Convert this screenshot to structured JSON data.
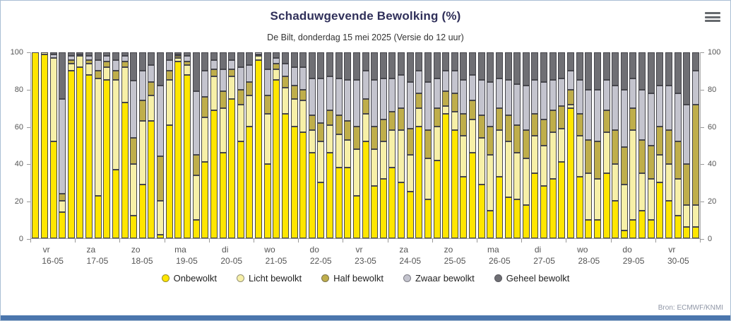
{
  "header": {
    "title": "Schaduwgevende Bewolking (%)",
    "subtitle": "De Bilt, donderdag 15 mei 2025 (Versie do 12 uur)"
  },
  "menu_icon": "hamburger-icon",
  "credits": "Bron: ECMWF/KNMI",
  "chart_data": {
    "type": "bar",
    "stacked": true,
    "title": "Schaduwgevende Bewolking (%)",
    "subtitle": "De Bilt, donderdag 15 mei 2025 (Versie do 12 uur)",
    "ylim": [
      0,
      100
    ],
    "yticks": [
      0,
      20,
      40,
      60,
      80,
      100
    ],
    "grid": false,
    "legend_position": "bottom",
    "series_names": [
      "Onbewolkt",
      "Licht bewolkt",
      "Half bewolkt",
      "Zwaar bewolkt",
      "Geheel bewolkt"
    ],
    "series_colors": [
      "#ffe600",
      "#f7f0a8",
      "#bfae4b",
      "#c4c4ce",
      "#6f6f74"
    ],
    "bars_per_day": 5,
    "days": [
      {
        "weekday": "vr",
        "date": "16-05",
        "bars": [
          [
            100,
            0,
            0,
            0,
            0
          ],
          [
            99,
            1,
            0,
            0,
            0
          ],
          [
            52,
            45,
            0,
            2,
            1
          ],
          [
            14,
            6,
            4,
            51,
            25
          ],
          [
            90,
            4,
            2,
            2,
            2
          ]
        ]
      },
      {
        "weekday": "za",
        "date": "17-05",
        "bars": [
          [
            92,
            6,
            0,
            1,
            1
          ],
          [
            88,
            6,
            2,
            2,
            2
          ],
          [
            23,
            63,
            4,
            6,
            4
          ],
          [
            85,
            7,
            3,
            3,
            2
          ],
          [
            37,
            48,
            5,
            6,
            4
          ]
        ]
      },
      {
        "weekday": "zo",
        "date": "18-05",
        "bars": [
          [
            73,
            19,
            3,
            3,
            2
          ],
          [
            12,
            28,
            14,
            31,
            15
          ],
          [
            29,
            34,
            11,
            16,
            10
          ],
          [
            63,
            14,
            7,
            9,
            7
          ],
          [
            2,
            18,
            24,
            38,
            18
          ]
        ]
      },
      {
        "weekday": "ma",
        "date": "19-05",
        "bars": [
          [
            61,
            24,
            5,
            6,
            4
          ],
          [
            95,
            2,
            1,
            1,
            1
          ],
          [
            88,
            5,
            2,
            3,
            2
          ],
          [
            10,
            24,
            11,
            34,
            21
          ],
          [
            41,
            24,
            11,
            14,
            10
          ]
        ]
      },
      {
        "weekday": "di",
        "date": "20-05",
        "bars": [
          [
            69,
            18,
            4,
            5,
            4
          ],
          [
            46,
            24,
            9,
            12,
            9
          ],
          [
            75,
            12,
            4,
            5,
            4
          ],
          [
            52,
            20,
            8,
            12,
            8
          ],
          [
            60,
            17,
            7,
            9,
            7
          ]
        ]
      },
      {
        "weekday": "wo",
        "date": "21-05",
        "bars": [
          [
            96,
            2,
            1,
            1,
            0
          ],
          [
            40,
            27,
            10,
            14,
            9
          ],
          [
            85,
            6,
            3,
            3,
            3
          ],
          [
            67,
            14,
            6,
            7,
            6
          ],
          [
            60,
            15,
            7,
            10,
            8
          ]
        ]
      },
      {
        "weekday": "do",
        "date": "22-05",
        "bars": [
          [
            57,
            17,
            6,
            12,
            8
          ],
          [
            46,
            12,
            8,
            20,
            14
          ],
          [
            30,
            22,
            10,
            24,
            14
          ],
          [
            46,
            15,
            8,
            18,
            13
          ],
          [
            38,
            18,
            10,
            20,
            14
          ]
        ]
      },
      {
        "weekday": "vr",
        "date": "23-05",
        "bars": [
          [
            38,
            15,
            10,
            22,
            15
          ],
          [
            23,
            25,
            12,
            25,
            15
          ],
          [
            52,
            15,
            8,
            15,
            10
          ],
          [
            28,
            20,
            12,
            25,
            15
          ],
          [
            32,
            20,
            12,
            22,
            14
          ]
        ]
      },
      {
        "weekday": "za",
        "date": "24-05",
        "bars": [
          [
            38,
            20,
            10,
            18,
            14
          ],
          [
            30,
            28,
            12,
            18,
            12
          ],
          [
            25,
            20,
            14,
            25,
            16
          ],
          [
            60,
            10,
            8,
            12,
            10
          ],
          [
            21,
            22,
            15,
            26,
            16
          ]
        ]
      },
      {
        "weekday": "zo",
        "date": "25-05",
        "bars": [
          [
            42,
            18,
            10,
            16,
            14
          ],
          [
            67,
            4,
            8,
            11,
            10
          ],
          [
            58,
            10,
            10,
            12,
            10
          ],
          [
            33,
            22,
            12,
            18,
            15
          ],
          [
            46,
            18,
            10,
            14,
            12
          ]
        ]
      },
      {
        "weekday": "ma",
        "date": "26-05",
        "bars": [
          [
            29,
            25,
            12,
            19,
            15
          ],
          [
            15,
            30,
            15,
            24,
            16
          ],
          [
            33,
            25,
            12,
            16,
            14
          ],
          [
            22,
            30,
            14,
            19,
            15
          ],
          [
            21,
            25,
            15,
            22,
            17
          ]
        ]
      },
      {
        "weekday": "di",
        "date": "27-05",
        "bars": [
          [
            18,
            25,
            15,
            24,
            18
          ],
          [
            35,
            20,
            12,
            18,
            15
          ],
          [
            28,
            22,
            14,
            20,
            16
          ],
          [
            32,
            25,
            12,
            16,
            15
          ],
          [
            41,
            18,
            12,
            15,
            14
          ]
        ]
      },
      {
        "weekday": "wo",
        "date": "28-05",
        "bars": [
          [
            70,
            2,
            8,
            10,
            10
          ],
          [
            33,
            22,
            12,
            18,
            15
          ],
          [
            10,
            25,
            18,
            27,
            20
          ],
          [
            10,
            22,
            20,
            28,
            20
          ],
          [
            35,
            22,
            12,
            16,
            15
          ]
        ]
      },
      {
        "weekday": "do",
        "date": "29-05",
        "bars": [
          [
            20,
            20,
            18,
            24,
            18
          ],
          [
            4,
            25,
            20,
            31,
            20
          ],
          [
            10,
            48,
            12,
            16,
            14
          ],
          [
            15,
            20,
            18,
            27,
            20
          ],
          [
            10,
            22,
            18,
            28,
            22
          ]
        ]
      },
      {
        "weekday": "vr",
        "date": "30-05",
        "bars": [
          [
            30,
            15,
            15,
            22,
            18
          ],
          [
            20,
            20,
            18,
            24,
            18
          ],
          [
            12,
            20,
            20,
            26,
            22
          ],
          [
            6,
            12,
            22,
            32,
            28
          ],
          [
            6,
            12,
            54,
            18,
            10
          ]
        ]
      }
    ]
  }
}
